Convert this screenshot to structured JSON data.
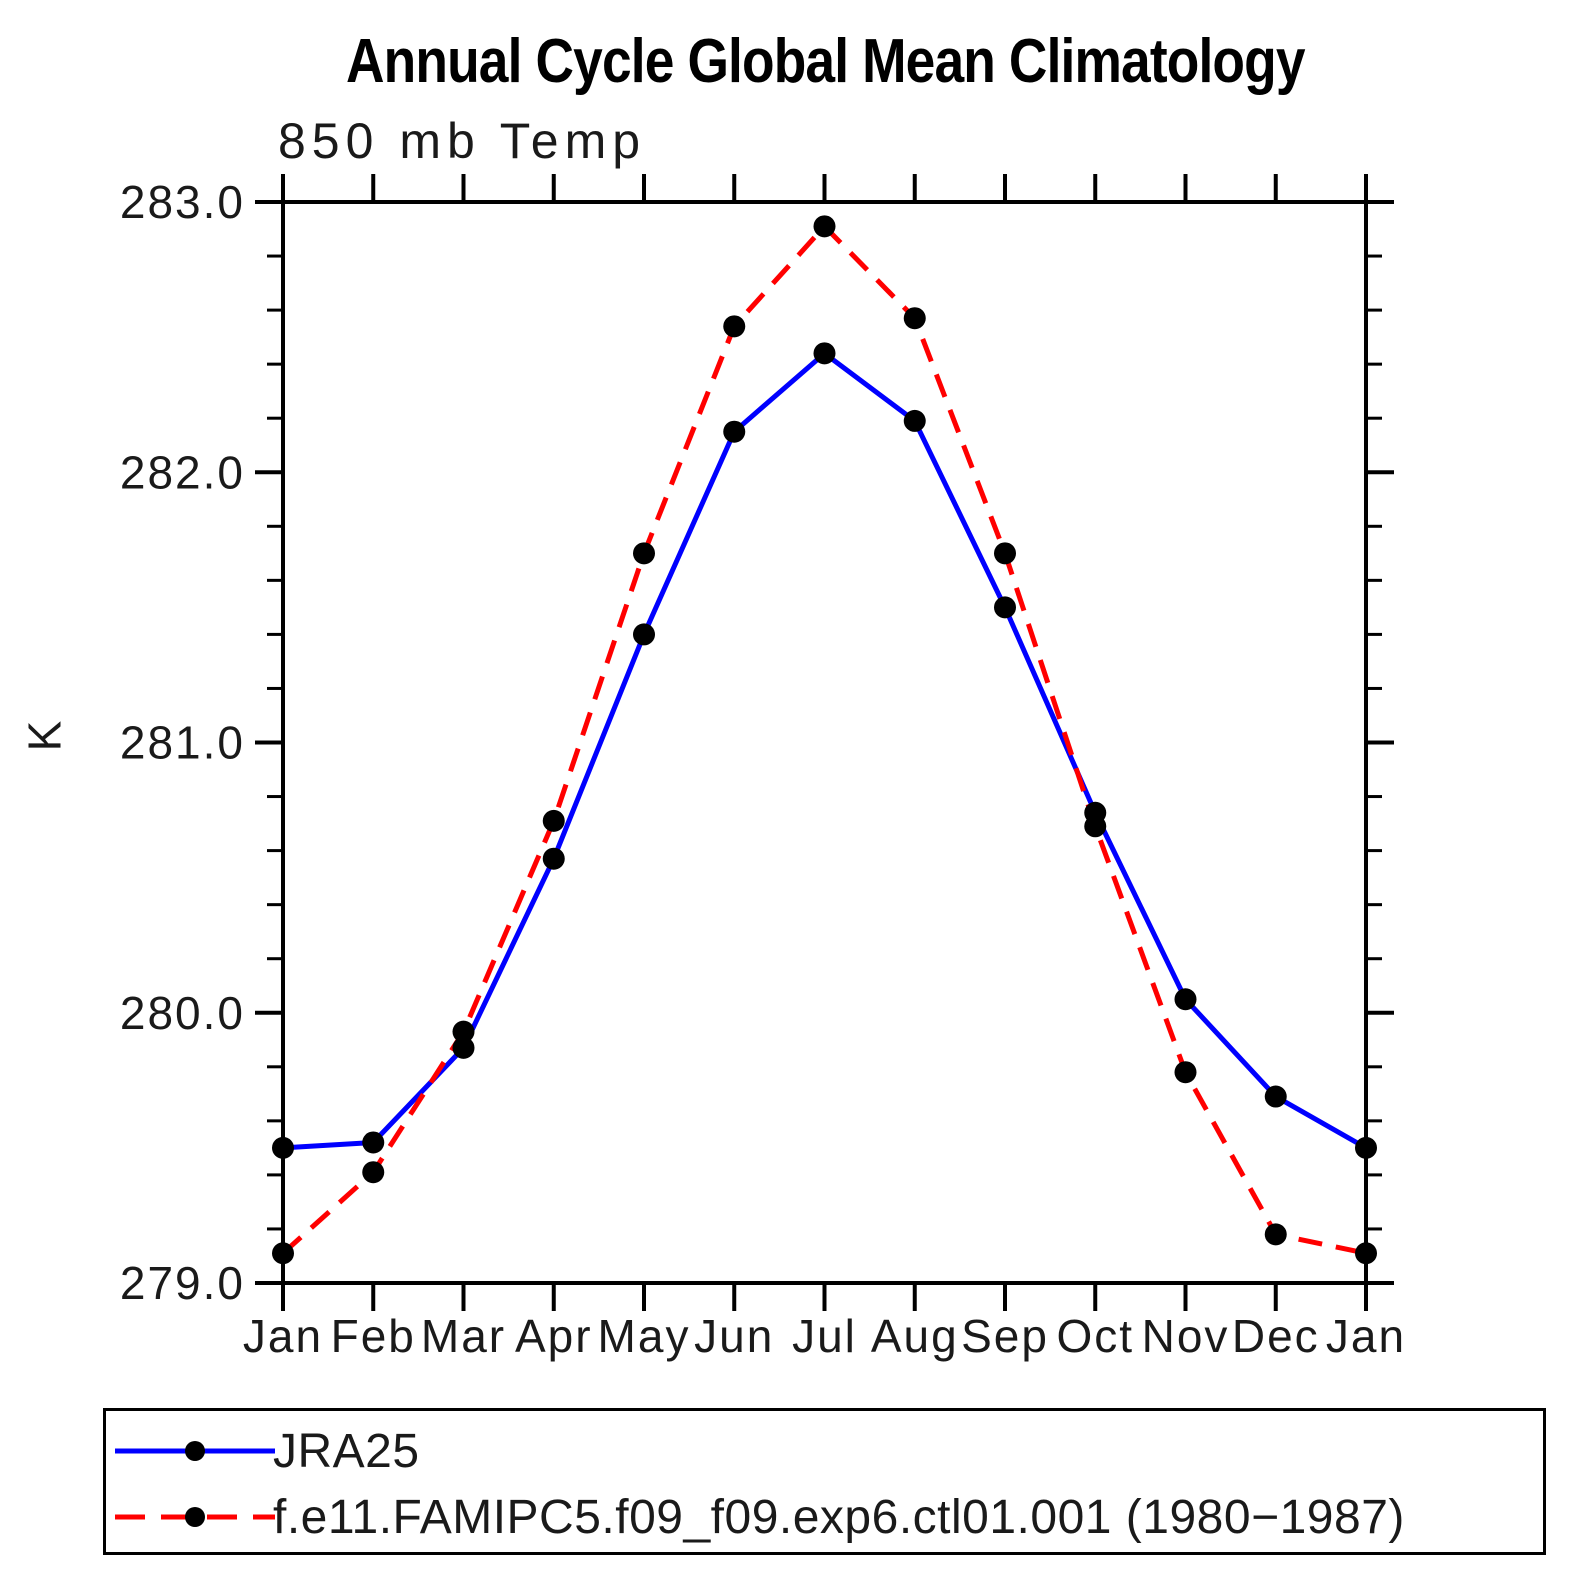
{
  "title": "Annual Cycle Global Mean Climatology",
  "subtitle": "850 mb Temp",
  "y_axis_label": "K",
  "chart_data": {
    "type": "line",
    "x_categories": [
      "Jan",
      "Feb",
      "Mar",
      "Apr",
      "May",
      "Jun",
      "Jul",
      "Aug",
      "Sep",
      "Oct",
      "Nov",
      "Dec",
      "Jan"
    ],
    "ylim": [
      279.0,
      283.0
    ],
    "ytick_labels": [
      "279.0",
      "280.0",
      "281.0",
      "282.0",
      "283.0"
    ],
    "ytick_values": [
      279.0,
      280.0,
      281.0,
      282.0,
      283.0
    ],
    "y_minor_step": 0.2,
    "grid": false,
    "legend_position": "bottom-left-box",
    "marker_color": "#000000",
    "series": [
      {
        "name": "JRA25",
        "color": "#0000ff",
        "style": "solid",
        "values": [
          279.5,
          279.52,
          279.87,
          280.57,
          281.4,
          282.15,
          282.44,
          282.19,
          281.5,
          280.74,
          280.05,
          279.69,
          279.5
        ]
      },
      {
        "name": "f.e11.FAMIPC5.f09_f09.exp6.ctl01.001 (1980−1987)",
        "color": "#ff0000",
        "style": "dashed",
        "values": [
          279.11,
          279.41,
          279.93,
          280.71,
          281.7,
          282.54,
          282.91,
          282.57,
          281.7,
          280.69,
          279.78,
          279.18,
          279.11
        ]
      }
    ]
  }
}
